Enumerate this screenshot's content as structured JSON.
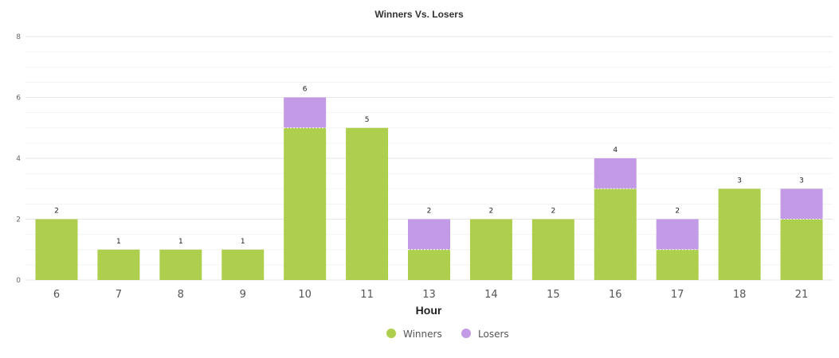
{
  "chart_data": {
    "type": "bar",
    "stacked": true,
    "title": "Winners Vs. Losers",
    "xlabel": "Hour",
    "ylabel": "",
    "ylim": [
      0,
      8
    ],
    "yticks": [
      "0",
      "2",
      "4",
      "6",
      "8"
    ],
    "categories": [
      "6",
      "7",
      "8",
      "9",
      "10",
      "11",
      "13",
      "14",
      "15",
      "16",
      "17",
      "18",
      "21"
    ],
    "series": [
      {
        "name": "Winners",
        "color": "#aece4d",
        "values": [
          2,
          1,
          1,
          1,
          5,
          5,
          1,
          2,
          2,
          3,
          1,
          3,
          2
        ]
      },
      {
        "name": "Losers",
        "color": "#c39ae6",
        "values": [
          0,
          0,
          0,
          0,
          1,
          0,
          1,
          0,
          0,
          1,
          1,
          0,
          1
        ]
      }
    ],
    "totals": [
      "2",
      "1",
      "1",
      "1",
      "6",
      "5",
      "2",
      "2",
      "2",
      "4",
      "2",
      "3",
      "3"
    ],
    "grid": true,
    "legend_position": "bottom-center"
  }
}
